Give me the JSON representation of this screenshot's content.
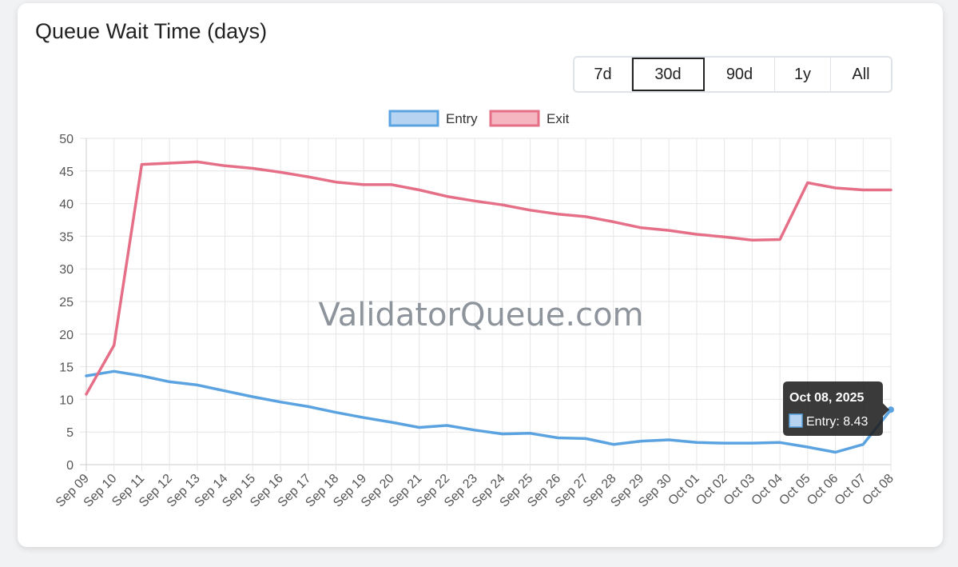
{
  "title": "Queue Wait Time (days)",
  "range_buttons": [
    {
      "label": "7d",
      "active": false
    },
    {
      "label": "30d",
      "active": true
    },
    {
      "label": "90d",
      "active": false
    },
    {
      "label": "1y",
      "active": false
    },
    {
      "label": "All",
      "active": false
    }
  ],
  "watermark": "ValidatorQueue.com",
  "tooltip": {
    "title": "Oct 08, 2025",
    "body": "Entry: 8.43",
    "series": "Entry"
  },
  "colors": {
    "entry_line": "#5ba3e0",
    "entry_fill": "#b6d4f2",
    "exit_line": "#e56f87",
    "exit_fill": "#f5b5c1",
    "grid": "#e6e6e6"
  },
  "chart_data": {
    "type": "line",
    "x": [
      "Sep 09",
      "Sep 10",
      "Sep 11",
      "Sep 12",
      "Sep 13",
      "Sep 14",
      "Sep 15",
      "Sep 16",
      "Sep 17",
      "Sep 18",
      "Sep 19",
      "Sep 20",
      "Sep 21",
      "Sep 22",
      "Sep 23",
      "Sep 24",
      "Sep 25",
      "Sep 26",
      "Sep 27",
      "Sep 28",
      "Sep 29",
      "Sep 30",
      "Oct 01",
      "Oct 02",
      "Oct 03",
      "Oct 04",
      "Oct 05",
      "Oct 06",
      "Oct 07",
      "Oct 08"
    ],
    "series": [
      {
        "name": "Entry",
        "values": [
          13.6,
          14.3,
          13.6,
          12.7,
          12.2,
          11.3,
          10.4,
          9.6,
          8.9,
          8.0,
          7.2,
          6.5,
          5.7,
          6.0,
          5.3,
          4.7,
          4.8,
          4.1,
          4.0,
          3.1,
          3.6,
          3.8,
          3.4,
          3.3,
          3.3,
          3.4,
          2.7,
          1.9,
          3.1,
          8.43
        ]
      },
      {
        "name": "Exit",
        "values": [
          10.8,
          18.3,
          46.0,
          46.2,
          46.4,
          45.8,
          45.4,
          44.8,
          44.1,
          43.3,
          42.9,
          42.9,
          42.1,
          41.1,
          40.4,
          39.8,
          39.0,
          38.4,
          38.0,
          37.2,
          36.3,
          35.9,
          35.3,
          34.9,
          34.4,
          34.5,
          43.2,
          42.4,
          42.1,
          42.1
        ]
      }
    ],
    "yticks": [
      0,
      5,
      10,
      15,
      20,
      25,
      30,
      35,
      40,
      45,
      50
    ],
    "ylim": [
      0,
      50
    ],
    "grid": true,
    "legend_position": "top-center"
  }
}
